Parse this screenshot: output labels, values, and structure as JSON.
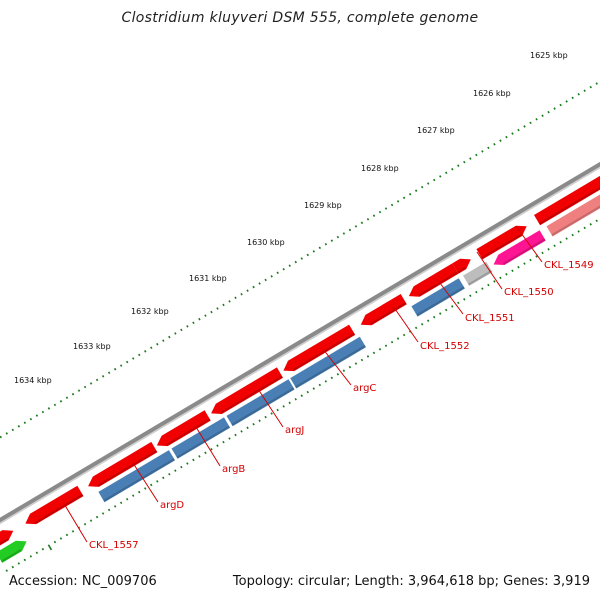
{
  "title": "Clostridium kluyveri DSM 555, complete genome",
  "footer": {
    "accession": "Accession: NC_009706",
    "summary": "Topology: circular; Length: 3,964,618 bp; Genes: 3,919"
  },
  "colors": {
    "backbone": "#8a8a8a",
    "cds_red": "#f00000",
    "cds_pink_light": "#f08080",
    "cds_magenta": "#ff1493",
    "cds_gray": "#bdbdbd",
    "cds_blue": "#4a7fb5",
    "cds_green": "#22cc22",
    "tick_green": "#1a7a1a",
    "label_red": "#d40000"
  },
  "scale_labels": [
    "1625 kbp",
    "1626 kbp",
    "1627 kbp",
    "1628 kbp",
    "1629 kbp",
    "1630 kbp",
    "1631 kbp",
    "1632 kbp",
    "1633 kbp",
    "1634 kbp"
  ],
  "gene_labels": [
    "CKL_1549",
    "CKL_1550",
    "CKL_1551",
    "CKL_1552",
    "argC",
    "argJ",
    "argB",
    "argD",
    "CKL_1557"
  ]
}
